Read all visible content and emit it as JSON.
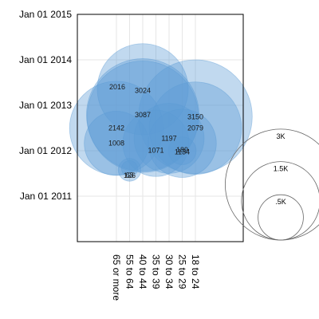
{
  "chart_data": {
    "type": "bubble",
    "title": "",
    "xlabel": "",
    "ylabel": "",
    "x_categories": [
      "65 or more",
      "55 to 64",
      "40 to 44",
      "35 to 39",
      "30 to 34",
      "25 to 29",
      "18 to 24"
    ],
    "y_ticks": [
      "Jan 01 2011",
      "Jan 01 2012",
      "Jan 01 2013",
      "Jan 01 2014",
      "Jan 01 2015"
    ],
    "ylim": [
      "2010-01-01",
      "2015-01-01"
    ],
    "grid": true,
    "bubble_color": "#5b9bd5",
    "points": [
      {
        "category": "65 or more",
        "date": "2012-07-01",
        "label": "2142"
      },
      {
        "category": "65 or more",
        "date": "2012-03-01",
        "label": "1008"
      },
      {
        "category": "55 to 64",
        "date": "2011-08-10",
        "label": "63"
      },
      {
        "category": "55 to 64",
        "date": "2011-08-01",
        "label": "126"
      },
      {
        "category": "40 to 44",
        "date": "2013-05-10",
        "label": "2016"
      },
      {
        "category": "40 to 44",
        "date": "2012-10-15",
        "label": "3087"
      },
      {
        "category": "40 to 44",
        "date": "2012-10-01",
        "label": "3024"
      },
      {
        "category": "35 to 39",
        "date": "2012-03-01",
        "label": "1071"
      },
      {
        "category": "30 to 34",
        "date": "2012-04-10",
        "label": "1197"
      },
      {
        "category": "25 to 29",
        "date": "2012-01-01",
        "label": "189"
      },
      {
        "category": "25 to 29",
        "date": "2012-03-01",
        "label": "1134"
      },
      {
        "category": "18 to 24",
        "date": "2012-07-01",
        "label": "2079"
      },
      {
        "category": "18 to 24",
        "date": "2012-10-01",
        "label": "3150"
      }
    ],
    "size_legend": [
      {
        "label": "3K",
        "value": 3000
      },
      {
        "label": "1.5K",
        "value": 1500
      },
      {
        "label": ".5K",
        "value": 500
      }
    ]
  }
}
